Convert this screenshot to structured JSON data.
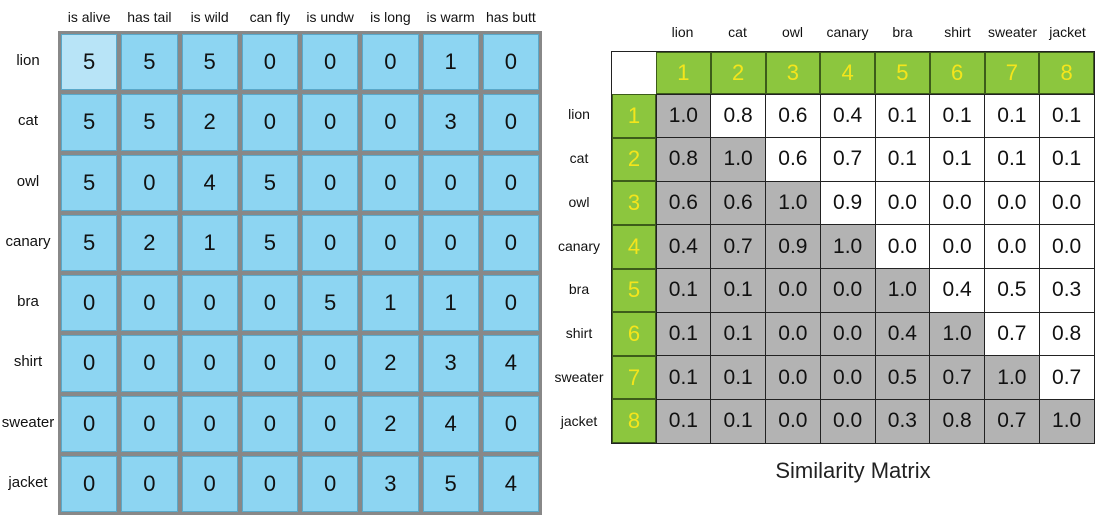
{
  "feature_table": {
    "columns": [
      "is alive",
      "has tail",
      "is wild",
      "can fly",
      "is undw",
      "is long",
      "is warm",
      "has butt"
    ],
    "rows": [
      {
        "label": "lion",
        "values": [
          "5",
          "5",
          "5",
          "0",
          "0",
          "0",
          "1",
          "0"
        ]
      },
      {
        "label": "cat",
        "values": [
          "5",
          "5",
          "2",
          "0",
          "0",
          "0",
          "3",
          "0"
        ]
      },
      {
        "label": "owl",
        "values": [
          "5",
          "0",
          "4",
          "5",
          "0",
          "0",
          "0",
          "0"
        ]
      },
      {
        "label": "canary",
        "values": [
          "5",
          "2",
          "1",
          "5",
          "0",
          "0",
          "0",
          "0"
        ]
      },
      {
        "label": "bra",
        "values": [
          "0",
          "0",
          "0",
          "0",
          "5",
          "1",
          "1",
          "0"
        ]
      },
      {
        "label": "shirt",
        "values": [
          "0",
          "0",
          "0",
          "0",
          "0",
          "2",
          "3",
          "4"
        ]
      },
      {
        "label": "sweater",
        "values": [
          "0",
          "0",
          "0",
          "0",
          "0",
          "2",
          "4",
          "0"
        ]
      },
      {
        "label": "jacket",
        "values": [
          "0",
          "0",
          "0",
          "0",
          "0",
          "3",
          "5",
          "4"
        ]
      }
    ]
  },
  "similarity_matrix": {
    "title": "Similarity Matrix",
    "column_labels": [
      "lion",
      "cat",
      "owl",
      "canary",
      "bra",
      "shirt",
      "sweater",
      "jacket"
    ],
    "row_labels": [
      "lion",
      "cat",
      "owl",
      "canary",
      "bra",
      "shirt",
      "sweater",
      "jacket"
    ],
    "indices": [
      "1",
      "2",
      "3",
      "4",
      "5",
      "6",
      "7",
      "8"
    ],
    "values": [
      [
        "1.0",
        "0.8",
        "0.6",
        "0.4",
        "0.1",
        "0.1",
        "0.1",
        "0.1"
      ],
      [
        "0.8",
        "1.0",
        "0.6",
        "0.7",
        "0.1",
        "0.1",
        "0.1",
        "0.1"
      ],
      [
        "0.6",
        "0.6",
        "1.0",
        "0.9",
        "0.0",
        "0.0",
        "0.0",
        "0.0"
      ],
      [
        "0.4",
        "0.7",
        "0.9",
        "1.0",
        "0.0",
        "0.0",
        "0.0",
        "0.0"
      ],
      [
        "0.1",
        "0.1",
        "0.0",
        "0.0",
        "1.0",
        "0.4",
        "0.5",
        "0.3"
      ],
      [
        "0.1",
        "0.1",
        "0.0",
        "0.0",
        "0.4",
        "1.0",
        "0.7",
        "0.8"
      ],
      [
        "0.1",
        "0.1",
        "0.0",
        "0.0",
        "0.5",
        "0.7",
        "1.0",
        "0.7"
      ],
      [
        "0.1",
        "0.1",
        "0.0",
        "0.0",
        "0.3",
        "0.8",
        "0.7",
        "1.0"
      ]
    ]
  },
  "colors": {
    "feature_cell": "#8dd5f2",
    "index_header": "#8cc63e",
    "index_text": "#f4e51c",
    "lower_triangle": "#b3b3b3"
  }
}
